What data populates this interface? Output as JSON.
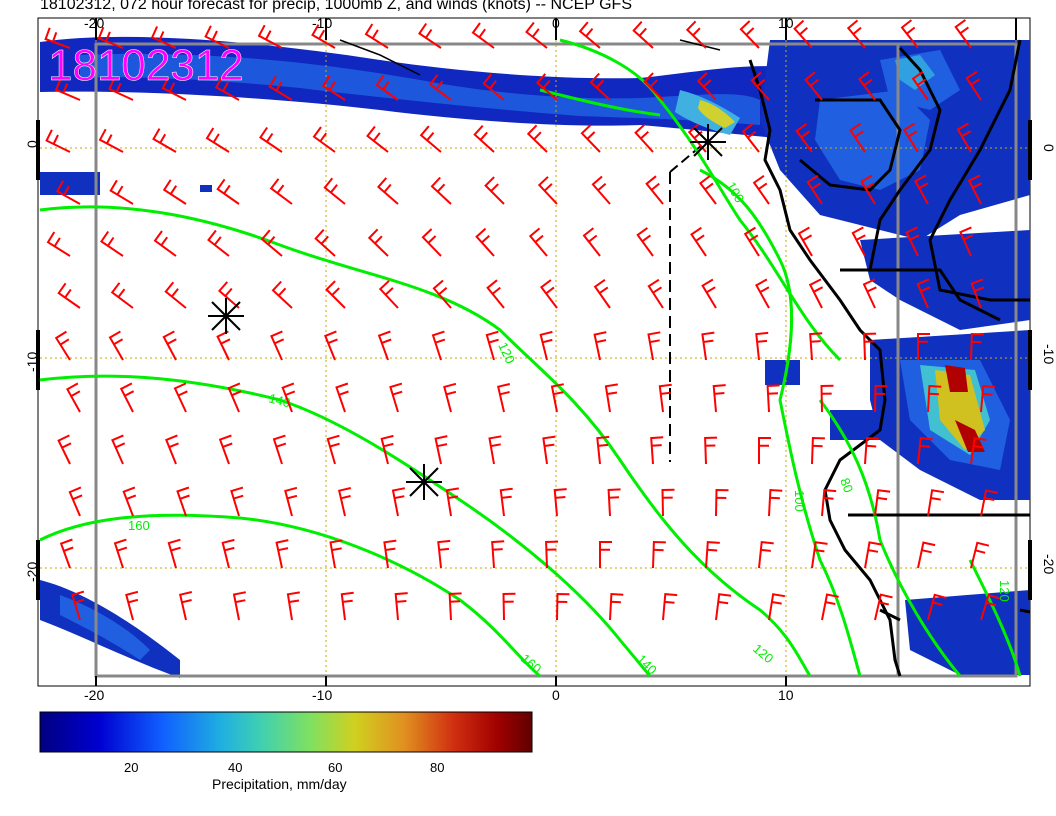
{
  "title": "18102312, 072 hour forecast for precip, 1000mb Z, and winds (knots) -- NCEP GFS",
  "date_stamp": "18102312",
  "axes": {
    "x_ticks": [
      "-20",
      "-10",
      "0",
      "10"
    ],
    "y_ticks": [
      "0",
      "-10",
      "-20"
    ]
  },
  "contour_labels": [
    "100",
    "120",
    "140",
    "160",
    "80",
    "120",
    "140",
    "160",
    "100",
    "120"
  ],
  "colorbar": {
    "label": "Precipitation, mm/day",
    "ticks": [
      "20",
      "40",
      "60",
      "80"
    ],
    "colors": [
      "#000080",
      "#0000d0",
      "#1060ff",
      "#20b0e0",
      "#40d0b0",
      "#80e060",
      "#d0d020",
      "#e09020",
      "#d03010",
      "#a00000",
      "#600000"
    ]
  },
  "colors": {
    "wind_barbs": "#ff0000",
    "height_contours": "#00ee00",
    "grid": "#c8a800",
    "coastline": "#000000",
    "stamp": "#ff00ff"
  }
}
